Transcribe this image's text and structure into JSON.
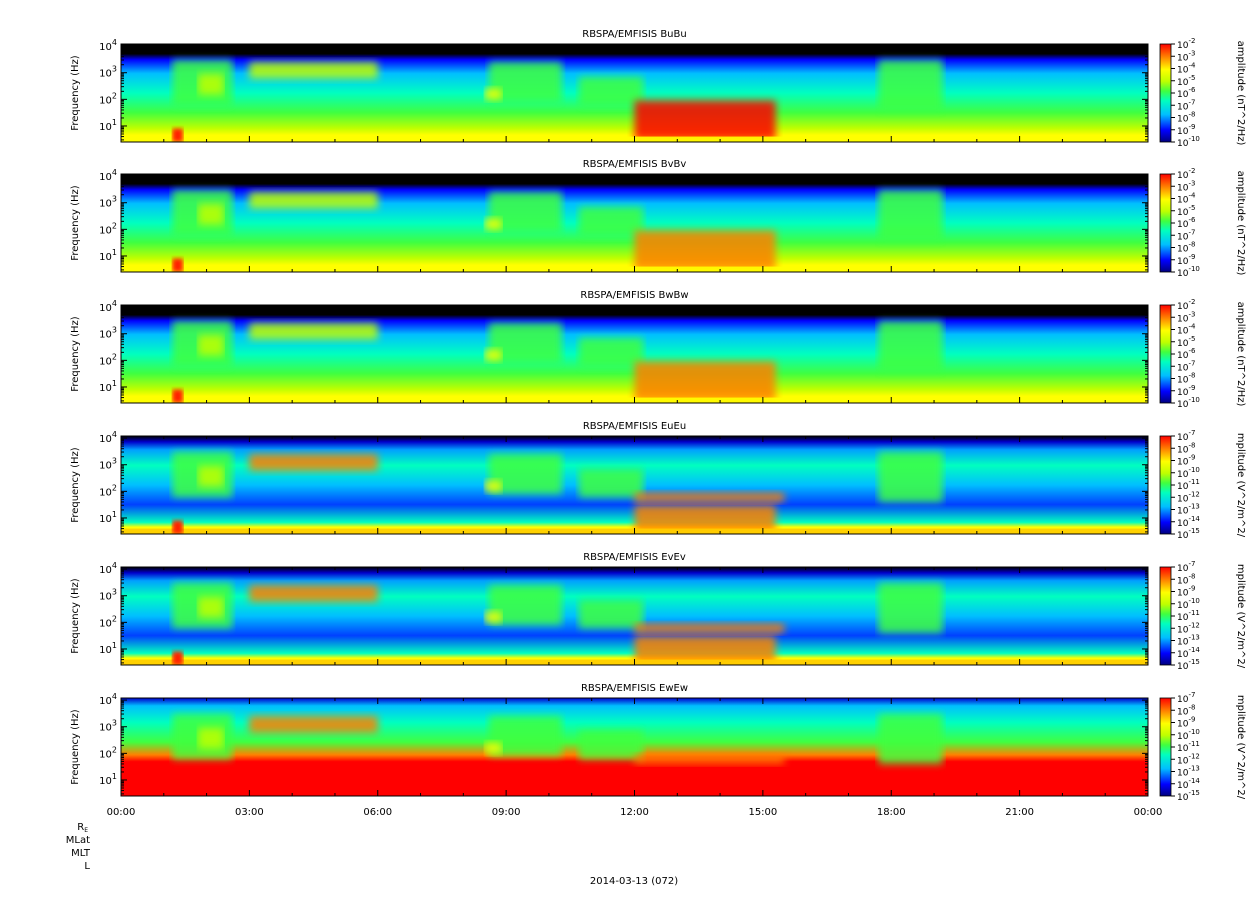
{
  "figure": {
    "date_label": "2014-03-13 (072)",
    "ephemeris_labels": [
      "R_E",
      "MLat",
      "MLT",
      "L"
    ]
  },
  "chart_data": {
    "type": "heatmap",
    "x_tick_labels": [
      "00:00",
      "03:00",
      "06:00",
      "09:00",
      "12:00",
      "15:00",
      "18:00",
      "21:00",
      "00:00"
    ],
    "x_range_hours": [
      0,
      24
    ],
    "y_scale": "log",
    "y_range_hz": [
      2.5,
      12000
    ],
    "colormap": [
      "#00007f",
      "#0000ff",
      "#00bfff",
      "#00ffbf",
      "#40ff40",
      "#bfff00",
      "#ffff00",
      "#ff8000",
      "#ff0000"
    ],
    "panels": [
      {
        "title": "RBSPA/EMFISIS  BuBu",
        "ylabel": "Frequency (Hz)",
        "y_ticks": [
          {
            "base": "10",
            "exp": "1"
          },
          {
            "base": "10",
            "exp": "2"
          },
          {
            "base": "10",
            "exp": "3"
          },
          {
            "base": "10",
            "exp": "4"
          }
        ],
        "colorbar_label": "amplitude (nT^2/Hz)",
        "colorbar_ticks": [
          {
            "base": "10",
            "exp": "-2"
          },
          {
            "base": "10",
            "exp": "-3"
          },
          {
            "base": "10",
            "exp": "-4"
          },
          {
            "base": "10",
            "exp": "-5"
          },
          {
            "base": "10",
            "exp": "-6"
          },
          {
            "base": "10",
            "exp": "-7"
          },
          {
            "base": "10",
            "exp": "-8"
          },
          {
            "base": "10",
            "exp": "-9"
          },
          {
            "base": "10",
            "exp": "-10"
          }
        ],
        "colorbar_range": [
          -10,
          -2
        ]
      },
      {
        "title": "RBSPA/EMFISIS  BvBv",
        "ylabel": "Frequency (Hz)",
        "y_ticks": [
          {
            "base": "10",
            "exp": "1"
          },
          {
            "base": "10",
            "exp": "2"
          },
          {
            "base": "10",
            "exp": "3"
          },
          {
            "base": "10",
            "exp": "4"
          }
        ],
        "colorbar_label": "amplitude (nT^2/Hz)",
        "colorbar_ticks": [
          {
            "base": "10",
            "exp": "-2"
          },
          {
            "base": "10",
            "exp": "-3"
          },
          {
            "base": "10",
            "exp": "-4"
          },
          {
            "base": "10",
            "exp": "-5"
          },
          {
            "base": "10",
            "exp": "-6"
          },
          {
            "base": "10",
            "exp": "-7"
          },
          {
            "base": "10",
            "exp": "-8"
          },
          {
            "base": "10",
            "exp": "-9"
          },
          {
            "base": "10",
            "exp": "-10"
          }
        ],
        "colorbar_range": [
          -10,
          -2
        ]
      },
      {
        "title": "RBSPA/EMFISIS  BwBw",
        "ylabel": "Frequency (Hz)",
        "y_ticks": [
          {
            "base": "10",
            "exp": "1"
          },
          {
            "base": "10",
            "exp": "2"
          },
          {
            "base": "10",
            "exp": "3"
          },
          {
            "base": "10",
            "exp": "4"
          }
        ],
        "colorbar_label": "amplitude (nT^2/Hz)",
        "colorbar_ticks": [
          {
            "base": "10",
            "exp": "-2"
          },
          {
            "base": "10",
            "exp": "-3"
          },
          {
            "base": "10",
            "exp": "-4"
          },
          {
            "base": "10",
            "exp": "-5"
          },
          {
            "base": "10",
            "exp": "-6"
          },
          {
            "base": "10",
            "exp": "-7"
          },
          {
            "base": "10",
            "exp": "-8"
          },
          {
            "base": "10",
            "exp": "-9"
          },
          {
            "base": "10",
            "exp": "-10"
          }
        ],
        "colorbar_range": [
          -10,
          -2
        ]
      },
      {
        "title": "RBSPA/EMFISIS  EuEu",
        "ylabel": "Frequency (Hz)",
        "y_ticks": [
          {
            "base": "10",
            "exp": "1"
          },
          {
            "base": "10",
            "exp": "2"
          },
          {
            "base": "10",
            "exp": "3"
          },
          {
            "base": "10",
            "exp": "4"
          }
        ],
        "colorbar_label": "mplitude (V^2/m^2/",
        "colorbar_ticks": [
          {
            "base": "10",
            "exp": "-7"
          },
          {
            "base": "10",
            "exp": "-8"
          },
          {
            "base": "10",
            "exp": "-9"
          },
          {
            "base": "10",
            "exp": "-10"
          },
          {
            "base": "10",
            "exp": "-11"
          },
          {
            "base": "10",
            "exp": "-12"
          },
          {
            "base": "10",
            "exp": "-13"
          },
          {
            "base": "10",
            "exp": "-14"
          },
          {
            "base": "10",
            "exp": "-15"
          }
        ],
        "colorbar_range": [
          -15,
          -7
        ]
      },
      {
        "title": "RBSPA/EMFISIS  EvEv",
        "ylabel": "Frequency (Hz)",
        "y_ticks": [
          {
            "base": "10",
            "exp": "1"
          },
          {
            "base": "10",
            "exp": "2"
          },
          {
            "base": "10",
            "exp": "3"
          },
          {
            "base": "10",
            "exp": "4"
          }
        ],
        "colorbar_label": "mplitude (V^2/m^2/",
        "colorbar_ticks": [
          {
            "base": "10",
            "exp": "-7"
          },
          {
            "base": "10",
            "exp": "-8"
          },
          {
            "base": "10",
            "exp": "-9"
          },
          {
            "base": "10",
            "exp": "-10"
          },
          {
            "base": "10",
            "exp": "-11"
          },
          {
            "base": "10",
            "exp": "-12"
          },
          {
            "base": "10",
            "exp": "-13"
          },
          {
            "base": "10",
            "exp": "-14"
          },
          {
            "base": "10",
            "exp": "-15"
          }
        ],
        "colorbar_range": [
          -15,
          -7
        ]
      },
      {
        "title": "RBSPA/EMFISIS  EwEw",
        "ylabel": "Frequency (Hz)",
        "y_ticks": [
          {
            "base": "10",
            "exp": "1"
          },
          {
            "base": "10",
            "exp": "2"
          },
          {
            "base": "10",
            "exp": "3"
          },
          {
            "base": "10",
            "exp": "4"
          }
        ],
        "colorbar_label": "mplitude (V^2/m^2/",
        "colorbar_ticks": [
          {
            "base": "10",
            "exp": "-7"
          },
          {
            "base": "10",
            "exp": "-8"
          },
          {
            "base": "10",
            "exp": "-9"
          },
          {
            "base": "10",
            "exp": "-10"
          },
          {
            "base": "10",
            "exp": "-11"
          },
          {
            "base": "10",
            "exp": "-12"
          },
          {
            "base": "10",
            "exp": "-13"
          },
          {
            "base": "10",
            "exp": "-14"
          },
          {
            "base": "10",
            "exp": "-15"
          }
        ],
        "colorbar_range": [
          -15,
          -7
        ]
      }
    ]
  }
}
